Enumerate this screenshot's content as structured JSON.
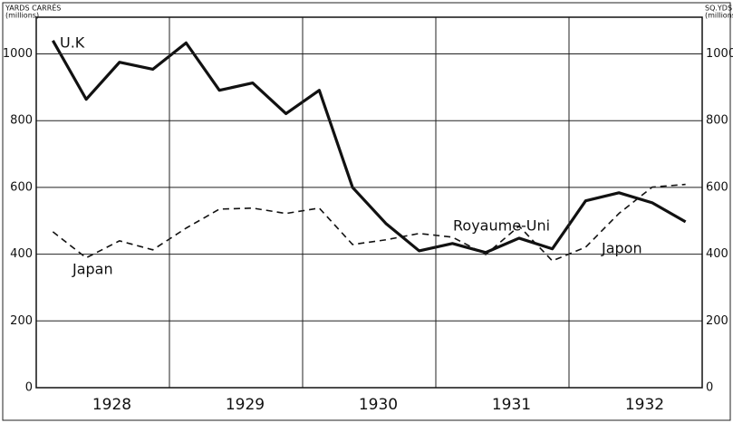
{
  "chart_data": {
    "type": "line",
    "y_label_left": [
      "YARDS CARRÉS",
      "(millions)"
    ],
    "y_label_right": [
      "SQ.YDS",
      "(millions)"
    ],
    "x_labels": [
      "1928",
      "1929",
      "1930",
      "1931",
      "1932"
    ],
    "series": [
      {
        "name": "U.K",
        "color": "#111111",
        "dash": false,
        "values": [
          1040,
          864,
          975,
          954,
          1033,
          891,
          913,
          821,
          891,
          600,
          492,
          410,
          432,
          405,
          448,
          416,
          560,
          584,
          554,
          497
        ]
      },
      {
        "name": "Japan",
        "color": "#111111",
        "dash": true,
        "values": [
          467,
          389,
          440,
          413,
          478,
          535,
          538,
          522,
          538,
          429,
          443,
          462,
          451,
          399,
          484,
          380,
          421,
          522,
          601,
          609
        ]
      }
    ],
    "annotations": [
      "U.K",
      "Royaume-Uni",
      "Japan",
      "Japon"
    ],
    "ylim": [
      0,
      1110
    ],
    "yticks": [
      0,
      200,
      400,
      600,
      800,
      1000
    ],
    "y2lim": [
      0,
      1110
    ],
    "y2ticks": [
      0,
      200,
      400,
      600,
      800,
      1000
    ],
    "grid": true
  }
}
